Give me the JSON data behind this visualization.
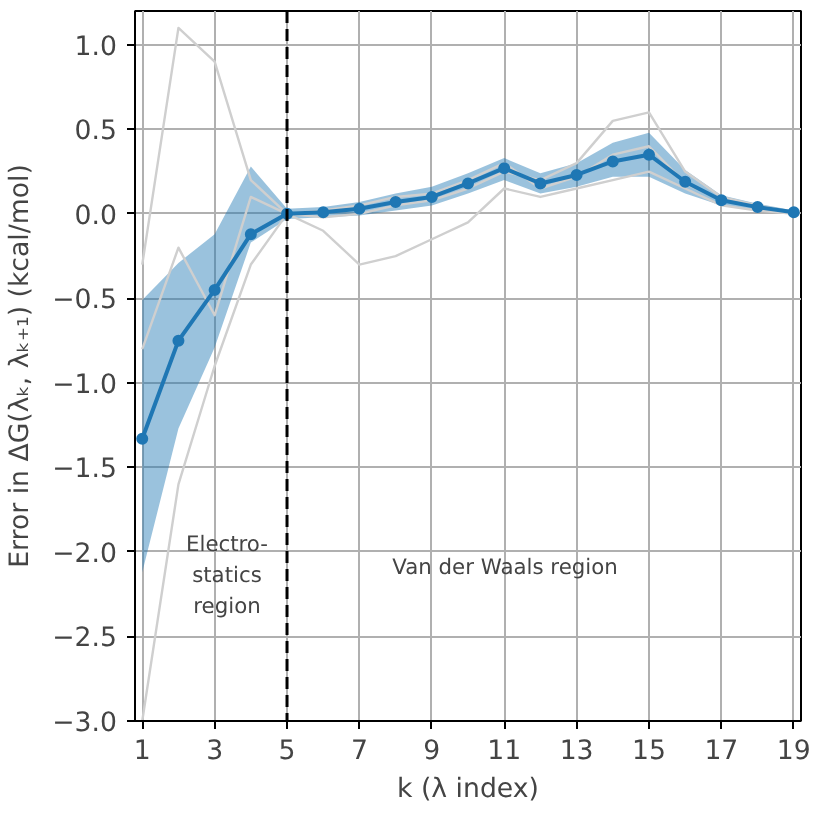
{
  "chart_data": {
    "type": "line",
    "xlabel": "k (λ index)",
    "ylabel": "Error in ΔG(λₖ, λₖ₊₁) (kcal/mol)",
    "x": [
      1,
      2,
      3,
      4,
      5,
      6,
      7,
      8,
      9,
      10,
      11,
      12,
      13,
      14,
      15,
      16,
      17,
      18,
      19
    ],
    "series": [
      {
        "color": "#cfcfcf",
        "marker": "none",
        "values": [
          -0.3,
          1.1,
          0.9,
          0.2,
          0.0,
          -0.02,
          0.0,
          0.05,
          0.08,
          0.15,
          0.25,
          0.2,
          0.3,
          0.55,
          0.6,
          0.25,
          0.1,
          0.05,
          0.01
        ]
      },
      {
        "color": "#cfcfcf",
        "marker": "none",
        "values": [
          -3.0,
          -1.6,
          -0.9,
          -0.3,
          0.0,
          -0.1,
          -0.3,
          -0.25,
          -0.15,
          -0.05,
          0.15,
          0.1,
          0.15,
          0.2,
          0.25,
          0.15,
          0.05,
          0.02,
          0.0
        ]
      },
      {
        "color": "#cfcfcf",
        "marker": "none",
        "values": [
          -0.8,
          -0.2,
          -0.6,
          0.1,
          0.0,
          0.02,
          0.05,
          0.1,
          0.12,
          0.2,
          0.3,
          0.15,
          0.22,
          0.35,
          0.4,
          0.18,
          0.08,
          0.04,
          0.01
        ]
      },
      {
        "color": "#1f77b4",
        "marker": "circle",
        "values": [
          -1.33,
          -0.75,
          -0.45,
          -0.12,
          0.0,
          0.01,
          0.03,
          0.07,
          0.1,
          0.18,
          0.27,
          0.18,
          0.23,
          0.31,
          0.35,
          0.19,
          0.08,
          0.04,
          0.01
        ],
        "lower": [
          -2.12,
          -1.27,
          -0.79,
          -0.17,
          -0.03,
          -0.02,
          -0.01,
          0.02,
          0.05,
          0.12,
          0.2,
          0.12,
          0.16,
          0.22,
          0.22,
          0.12,
          0.05,
          0.02,
          0.0
        ],
        "upper": [
          -0.51,
          -0.29,
          -0.12,
          0.28,
          0.03,
          0.04,
          0.07,
          0.12,
          0.16,
          0.24,
          0.33,
          0.24,
          0.3,
          0.42,
          0.48,
          0.26,
          0.11,
          0.06,
          0.02
        ]
      }
    ],
    "xlim": [
      0.8,
      19.2
    ],
    "xticks": [
      1,
      3,
      5,
      7,
      9,
      11,
      13,
      15,
      17,
      19
    ],
    "ylim": [
      -3.0,
      1.2
    ],
    "yticks": [
      {
        "value": -3.0,
        "label": "−3.0"
      },
      {
        "value": -2.5,
        "label": "−2.5"
      },
      {
        "value": -2.0,
        "label": "−2.0"
      },
      {
        "value": -1.5,
        "label": "−1.5"
      },
      {
        "value": -1.0,
        "label": "−1.0"
      },
      {
        "value": -0.5,
        "label": "−0.5"
      },
      {
        "value": 0.0,
        "label": "0.0"
      },
      {
        "value": 0.5,
        "label": "0.5"
      },
      {
        "value": 1.0,
        "label": "1.0"
      }
    ],
    "ref_lines": [
      {
        "axis": "x",
        "value": 5,
        "color": "#000000",
        "line_style": "dashed"
      }
    ],
    "annotations": [
      "Electro-\nstatics\nregion",
      "Van der Waals region"
    ],
    "grid": true,
    "line_style": "solid"
  }
}
